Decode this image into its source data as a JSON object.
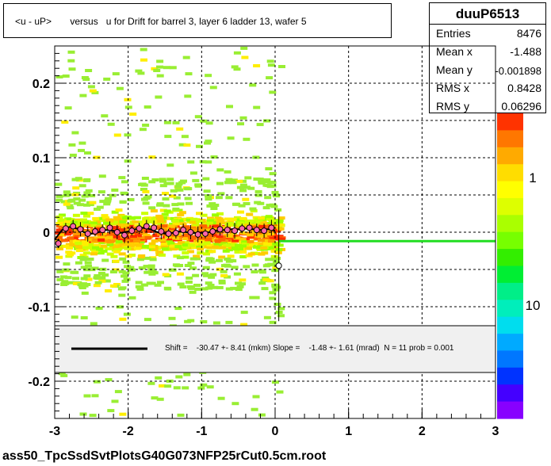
{
  "title": "<u - uP>       versus   u for Drift for barrel 3, layer 6 ladder 13, wafer 5",
  "stats": {
    "name": "duuP6513",
    "rows": [
      {
        "label": "Entries",
        "value": "8476"
      },
      {
        "label": "Mean x",
        "value": "-1.488"
      },
      {
        "label": "Mean y",
        "value": "-0.001898"
      },
      {
        "label": "RMS x",
        "value": "0.8428"
      },
      {
        "label": "RMS y",
        "value": "0.06296"
      }
    ]
  },
  "fit_label": "Shift =    -30.47 +- 8.41 (mkm) Slope =    -1.48 +- 1.61 (mrad)  N = 11 prob = 0.001",
  "footer": "ass50_TpcSsdSvtPlotsG40G073NFP25rCut0.5cm.root",
  "chart_data": {
    "type": "heatmap",
    "title": "<u - uP>       versus   u for Drift for barrel 3, layer 6 ladder 13, wafer 5",
    "xlabel": "",
    "ylabel": "",
    "xlim": [
      -3,
      3
    ],
    "ylim": [
      -0.25,
      0.25
    ],
    "x_ticks": [
      "-3",
      "-2",
      "-1",
      "0",
      "1",
      "2",
      "3"
    ],
    "y_ticks": [
      "-0.2",
      "-0.1",
      "0",
      "0.1",
      "0.2"
    ],
    "grid": true,
    "colorbar_labels": [
      "1",
      "10"
    ],
    "heatmap_extent_x": [
      -3,
      0.05
    ],
    "profile_points": {
      "x": [
        -2.95,
        -2.85,
        -2.75,
        -2.65,
        -2.55,
        -2.45,
        -2.35,
        -2.25,
        -2.15,
        -2.05,
        -1.95,
        -1.85,
        -1.75,
        -1.65,
        -1.55,
        -1.45,
        -1.35,
        -1.25,
        -1.15,
        -1.05,
        -0.95,
        -0.85,
        -0.75,
        -0.65,
        -0.55,
        -0.45,
        -0.35,
        -0.25,
        -0.15,
        -0.05,
        0.05
      ],
      "y": [
        -0.015,
        0.005,
        0.008,
        0.004,
        -0.002,
        0.001,
        0.003,
        0.006,
        0.0,
        -0.004,
        0.002,
        0.005,
        0.008,
        0.006,
        0.001,
        -0.002,
        -0.001,
        0.003,
        0.0,
        -0.003,
        -0.002,
        0.001,
        0.004,
        0.003,
        0.002,
        0.005,
        0.006,
        0.003,
        0.002,
        0.006,
        -0.045
      ]
    },
    "smooth_fit": {
      "x": [
        -3.0,
        -2.9,
        -2.8,
        -2.7,
        -2.6,
        -2.5,
        -2.4,
        -2.3,
        -2.2,
        -2.1,
        -2.0,
        -1.9,
        -1.8,
        -1.7,
        -1.6,
        -1.5,
        -1.4,
        -1.3,
        -1.2,
        -1.1,
        -1.0,
        -0.9,
        -0.8,
        -0.7,
        -0.6,
        -0.5,
        -0.4,
        -0.3,
        -0.2,
        -0.1,
        0.0
      ],
      "y": [
        -0.01,
        0.003,
        0.007,
        0.005,
        0.0,
        -0.002,
        0.0,
        0.003,
        0.002,
        -0.001,
        0.001,
        0.004,
        0.006,
        0.004,
        0.0,
        -0.002,
        -0.001,
        0.001,
        0.0,
        -0.001,
        -0.001,
        0.0,
        0.002,
        0.003,
        0.004,
        0.004,
        0.005,
        0.004,
        0.003,
        0.004,
        0.002
      ]
    },
    "linear_fit": {
      "x": [
        0.05,
        3.0
      ],
      "y": [
        -0.012,
        -0.012
      ],
      "color": "#22dd22"
    }
  }
}
